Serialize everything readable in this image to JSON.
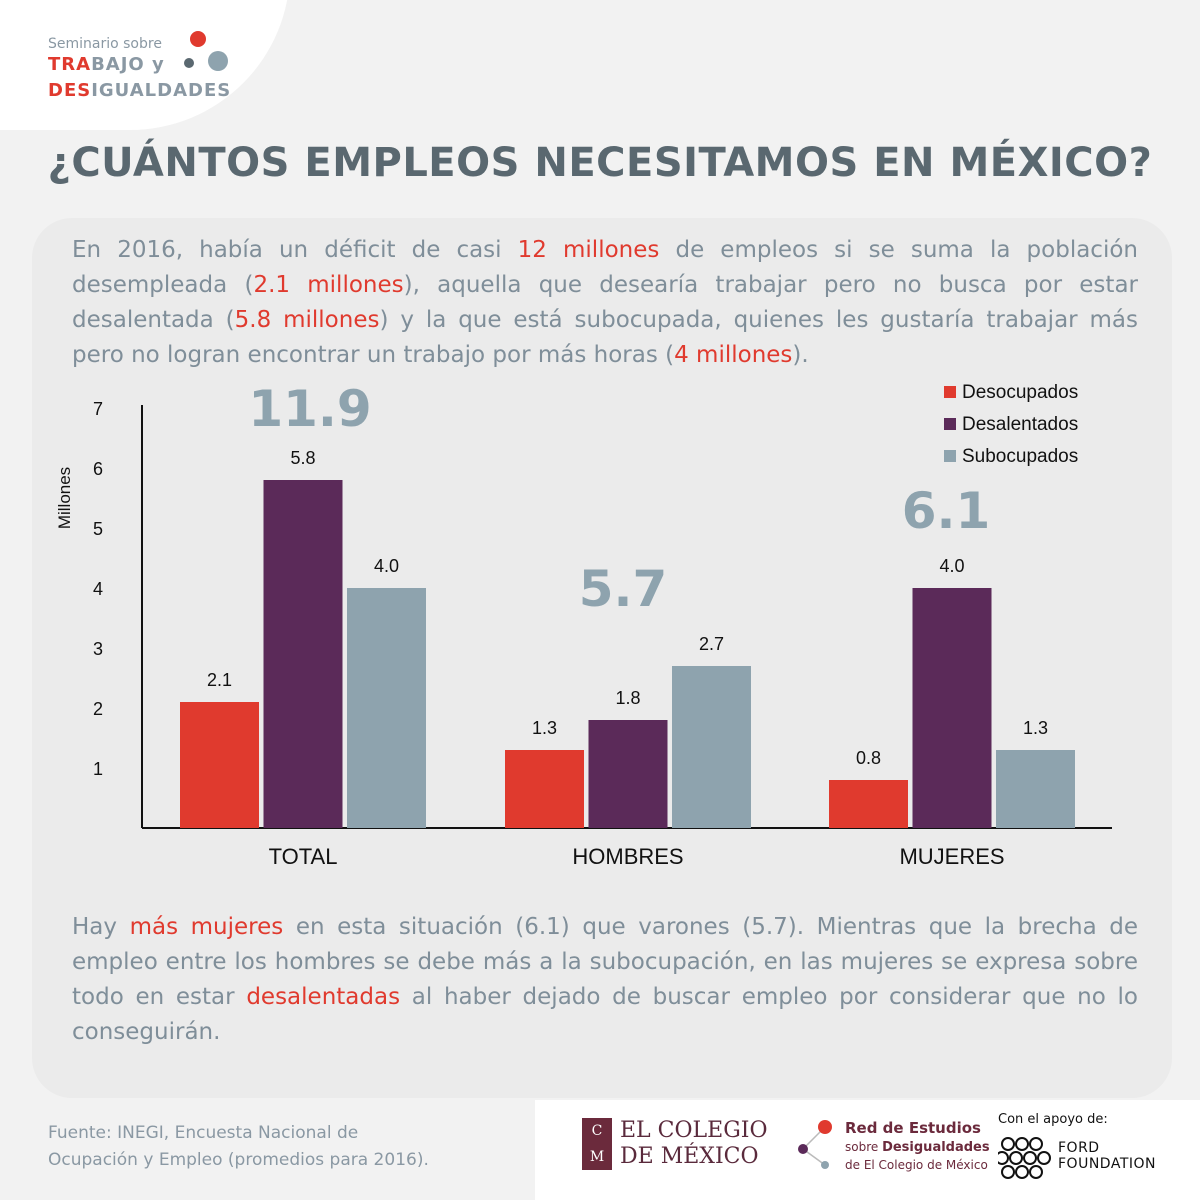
{
  "logo": {
    "line1": "Seminario sobre",
    "line2_red": "TRA",
    "line2_rest": "BAJO y",
    "line3_red": "DES",
    "line3_rest": "IGUALDADES"
  },
  "title": "¿CUÁNTOS EMPLEOS NECESITAMOS EN MÉXICO?",
  "intro": {
    "parts": [
      {
        "text": "En 2016, había un déficit de casi ",
        "hl": false
      },
      {
        "text": "12 millones",
        "hl": true
      },
      {
        "text": " de empleos si se suma la población desempleada (",
        "hl": false
      },
      {
        "text": "2.1 millones",
        "hl": true
      },
      {
        "text": "), aquella que desearía trabajar pero no busca por estar desalentada (",
        "hl": false
      },
      {
        "text": "5.8 millones",
        "hl": true
      },
      {
        "text": ") y la que está subocupada, quienes les gustaría trabajar más pero no logran encontrar un trabajo por más horas (",
        "hl": false
      },
      {
        "text": "4 millones",
        "hl": true
      },
      {
        "text": ").",
        "hl": false
      }
    ]
  },
  "chart_data": {
    "type": "bar",
    "categories": [
      "TOTAL",
      "HOMBRES",
      "MUJERES"
    ],
    "series": [
      {
        "name": "Desocupados",
        "color": "#e03a2e",
        "values": [
          2.1,
          1.3,
          0.8
        ]
      },
      {
        "name": "Desalentados",
        "color": "#5b2a59",
        "values": [
          5.8,
          1.8,
          4.0
        ]
      },
      {
        "name": "Subocupados",
        "color": "#8ea3ae",
        "values": [
          4.0,
          2.7,
          1.3
        ]
      }
    ],
    "value_labels": [
      [
        "2.1",
        "5.8",
        "4.0"
      ],
      [
        "1.3",
        "1.8",
        "2.7"
      ],
      [
        "0.8",
        "4.0",
        "1.3"
      ]
    ],
    "group_totals": [
      "11.9",
      "5.7",
      "6.1"
    ],
    "ylabel": "Millones",
    "yticks": [
      "1",
      "2",
      "3",
      "4",
      "5",
      "6",
      "7"
    ],
    "ylim": [
      0,
      7
    ],
    "legend_position": "top-right"
  },
  "conclusion": {
    "parts": [
      {
        "text": "Hay ",
        "hl": false
      },
      {
        "text": "más mujeres",
        "hl": true
      },
      {
        "text": " en esta situación (6.1) que varones (5.7). Mientras que la brecha de empleo entre los hombres se debe más a la subocupación, en las mujeres se expresa sobre todo en estar ",
        "hl": false
      },
      {
        "text": "desalentadas",
        "hl": true
      },
      {
        "text": " al haber dejado de buscar empleo por considerar que no lo conseguirán.",
        "hl": false
      }
    ]
  },
  "footer": {
    "source_line1": "Fuente: INEGI, Encuesta Nacional de",
    "source_line2": "Ocupación y Empleo (promedios para 2016).",
    "colmex_line1": "EL COLEGIO",
    "colmex_line2": "DE MÉXICO",
    "colmex_mark_top": "C",
    "colmex_mark_bottom": "M",
    "red_line1": "Red de Estudios",
    "red_line2_pre": "sobre ",
    "red_line2_bold": "Desigualdades",
    "red_line3": "de El Colegio de México",
    "apoyo": "Con el apoyo de:",
    "ford_line1": "FORD",
    "ford_line2": "FOUNDATION"
  }
}
